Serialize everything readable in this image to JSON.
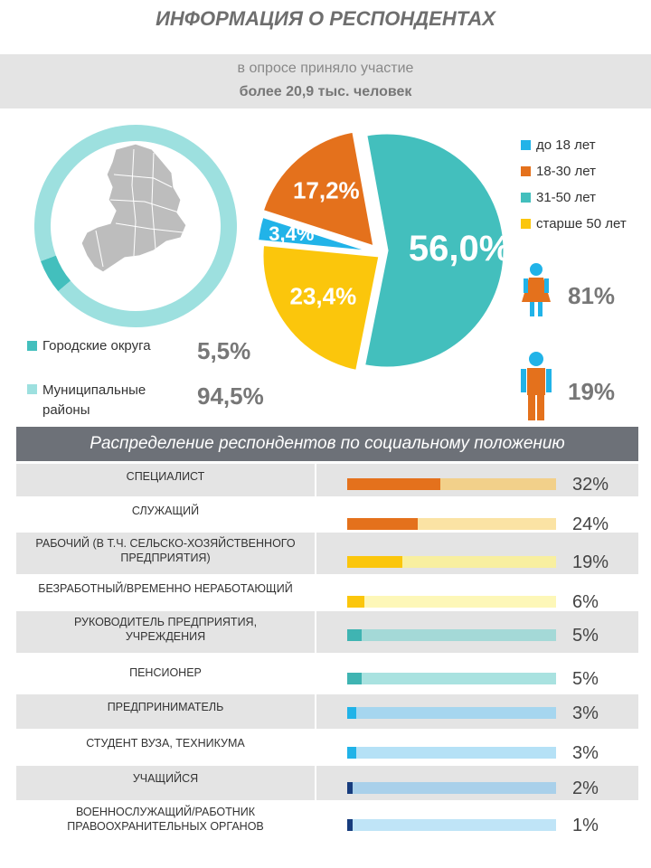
{
  "header": {
    "title": "ИНФОРМАЦИЯ О РЕСПОНДЕНТАХ",
    "subtitle_line1": "в опросе приняло участие",
    "subtitle_line2": "более 20,9 тыс. человек"
  },
  "colors": {
    "teal": "#43bfbd",
    "light_teal": "#9de0df",
    "orange": "#e4711c",
    "yellow": "#fbc60c",
    "light_blue": "#21b3e8",
    "navy": "#173c7d",
    "grey_band": "#e4e4e4",
    "dark_band": "#6d7178"
  },
  "region": {
    "items": [
      {
        "label": "Городские округа",
        "value": "5,5%"
      },
      {
        "label": "Муниципальные районы",
        "label_line1": "Муниципальные",
        "label_line2": "районы",
        "value": "94,5%"
      }
    ]
  },
  "gender": {
    "female_pct": "81%",
    "male_pct": "19%",
    "female_icon": "woman-icon",
    "male_icon": "man-icon"
  },
  "chart_data": [
    {
      "type": "pie",
      "title": "",
      "categories": [
        "Городские округа",
        "Муниципальные районы"
      ],
      "values": [
        5.5,
        94.5
      ],
      "style": "donut"
    },
    {
      "type": "pie",
      "title": "",
      "categories": [
        "до 18 лет",
        "18-30 лет",
        "31-50 лет",
        "старше 50 лет"
      ],
      "values": [
        3.4,
        17.2,
        56.0,
        23.4
      ],
      "labels": [
        "3,4%",
        "17,2%",
        "56,0%",
        "23,4%"
      ],
      "legend": "top-right"
    },
    {
      "type": "bar",
      "title": "Распределение респондентов по социальному положению",
      "orientation": "horizontal",
      "categories": [
        "Специалист",
        "Служащий",
        "Рабочий (в т.ч. сельско-хозяйственного предприятия)",
        "Безработный/временно неработающий",
        "Руководитель предприятия, учреждения",
        "Пенсионер",
        "Предприниматель",
        "Студент вуза, техникума",
        "Учащийся",
        "Военнослужащий/работник правоохранительных органов"
      ],
      "values": [
        32,
        24,
        19,
        6,
        5,
        5,
        3,
        3,
        2,
        1
      ],
      "labels": [
        "32%",
        "24%",
        "19%",
        "6%",
        "5%",
        "5%",
        "3%",
        "3%",
        "2%",
        "1%"
      ],
      "category_lines": [
        [
          "СПЕЦИАЛИСТ"
        ],
        [
          "СЛУЖАЩИЙ"
        ],
        [
          "РАБОЧИЙ (В Т.Ч. СЕЛЬСКО-ХОЗЯЙСТВЕННОГО",
          "ПРЕДПРИЯТИЯ)"
        ],
        [
          "БЕЗРАБОТНЫЙ/ВРЕМЕННО НЕРАБОТАЮЩИЙ"
        ],
        [
          "РУКОВОДИТЕЛЬ ПРЕДПРИЯТИЯ,",
          "УЧРЕЖДЕНИЯ"
        ],
        [
          "ПЕНСИОНЕР"
        ],
        [
          "ПРЕДПРИНИМАТЕЛЬ"
        ],
        [
          "СТУДЕНТ ВУЗА, ТЕХНИКУМА"
        ],
        [
          "УЧАЩИЙСЯ"
        ],
        [
          "ВОЕННОСЛУЖАЩИЙ/РАБОТНИК",
          "ПРАВООХРАНИТЕЛЬНЫХ ОРГАНОВ"
        ]
      ],
      "bar_colors": [
        "#e4711c",
        "#e4711c",
        "#fbc60c",
        "#fbc60c",
        "#3fb4b2",
        "#3fb4b2",
        "#21b3e8",
        "#21b3e8",
        "#173c7d",
        "#173c7d"
      ],
      "track_colors": [
        "#f2d08a",
        "#fbe3a4",
        "#f8efa0",
        "#fdf7b8",
        "#a4d9d7",
        "#a9e2e0",
        "#a6d6ef",
        "#b5e1f6",
        "#a9d0ea",
        "#bfe4f7"
      ]
    }
  ]
}
